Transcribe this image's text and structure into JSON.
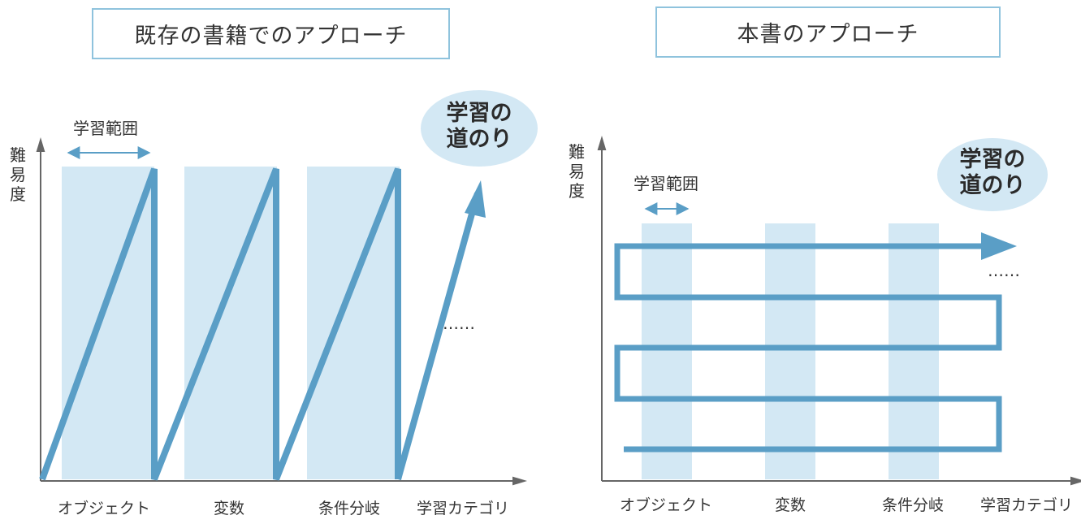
{
  "colors": {
    "band": "#d3e8f4",
    "path": "#5a9ec6",
    "axis": "#666666",
    "bubble": "#d3e8f4",
    "title_border": "#8fc3dd"
  },
  "left": {
    "title": "既存の書籍でのアプローチ",
    "range_label": "学習範囲",
    "y_axis": [
      "難",
      "易",
      "度"
    ],
    "bubble": [
      "学習の",
      "道のり"
    ],
    "ellipsis": "……",
    "categories": [
      "オブジェクト",
      "変数",
      "条件分岐",
      "学習カテゴリ"
    ]
  },
  "right": {
    "title": "本書のアプローチ",
    "range_label": "学習範囲",
    "y_axis": [
      "難",
      "易",
      "度"
    ],
    "bubble": [
      "学習の",
      "道のり"
    ],
    "ellipsis": "……",
    "categories": [
      "オブジェクト",
      "変数",
      "条件分岐",
      "学習カテゴリ"
    ]
  }
}
